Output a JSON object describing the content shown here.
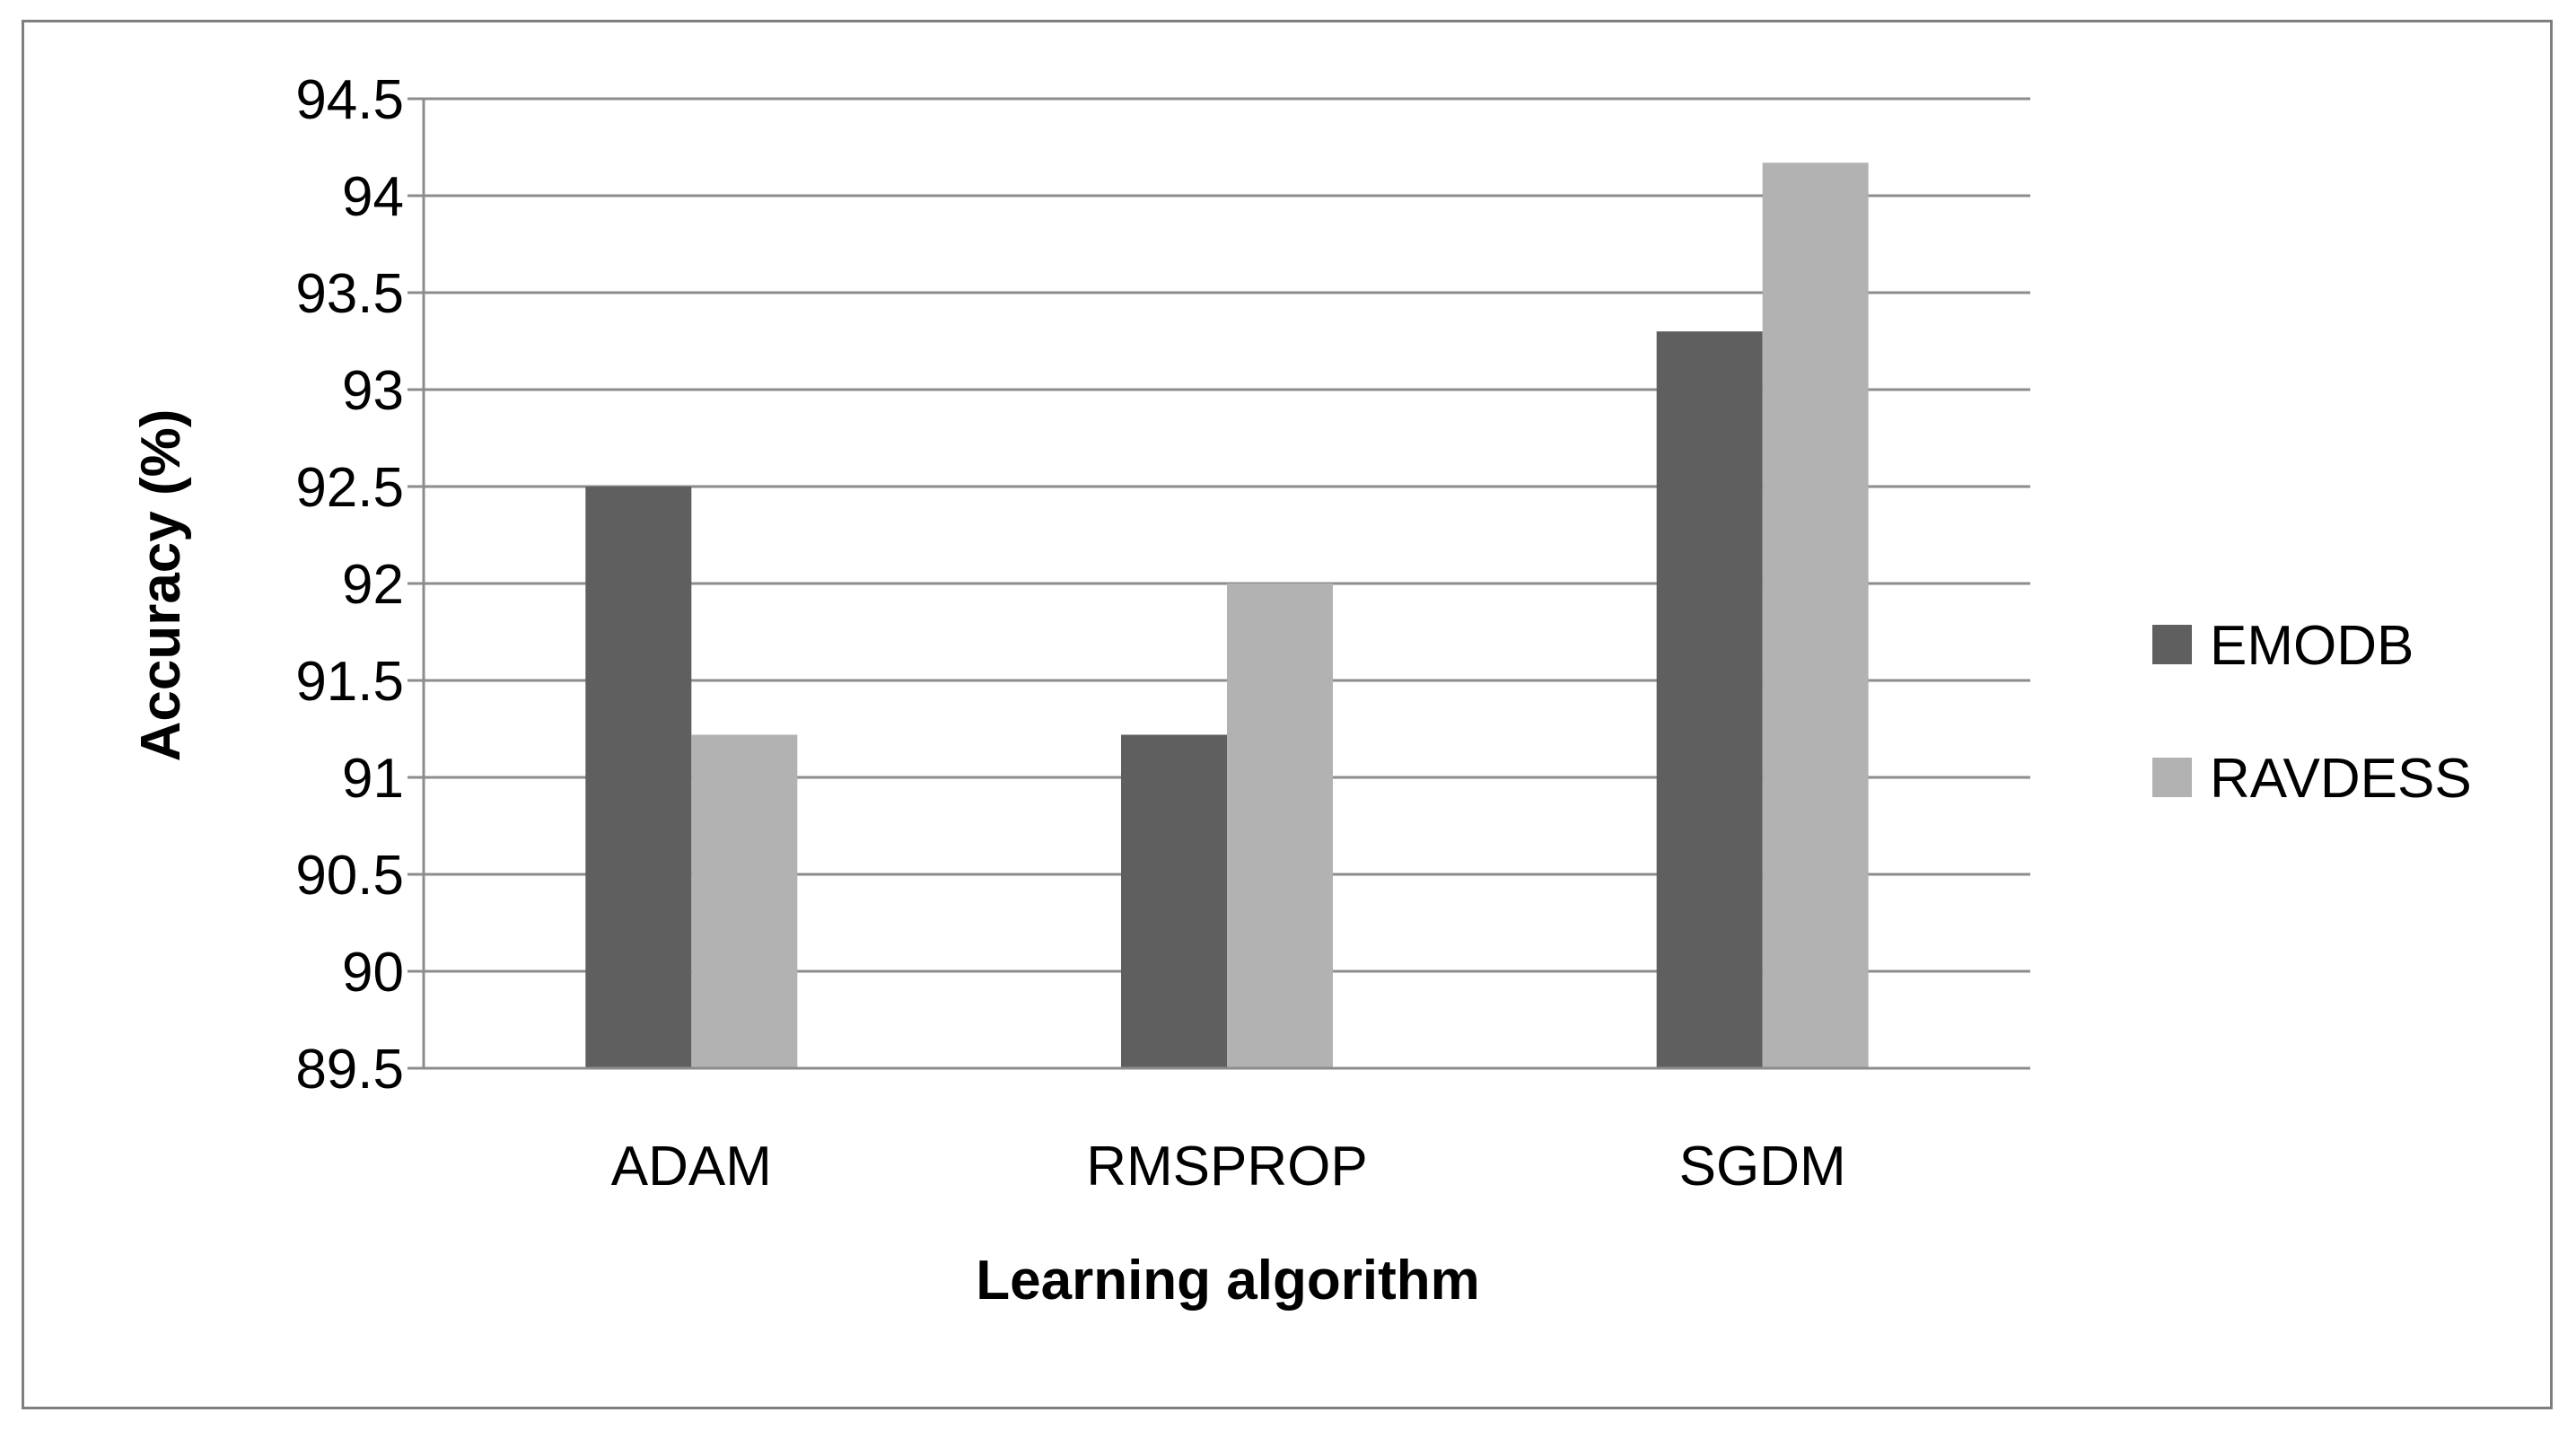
{
  "chart_data": {
    "type": "bar",
    "title": "",
    "xlabel": "Learning algorithm",
    "ylabel": "Accuracy (%)",
    "categories": [
      "ADAM",
      "RMSPROP",
      "SGDM"
    ],
    "series": [
      {
        "name": "EMODB",
        "color": "#5f5f5f",
        "values": [
          92.5,
          91.22,
          93.3
        ]
      },
      {
        "name": "RAVDESS",
        "color": "#b2b2b2",
        "values": [
          91.22,
          92.0,
          94.17
        ]
      }
    ],
    "ylim": [
      89.5,
      94.5
    ],
    "yticks": [
      "94.5",
      "94",
      "93.5",
      "93",
      "92.5",
      "92",
      "91.5",
      "91",
      "90.5",
      "90",
      "89.5"
    ],
    "grid": true,
    "legend_position": "right"
  }
}
